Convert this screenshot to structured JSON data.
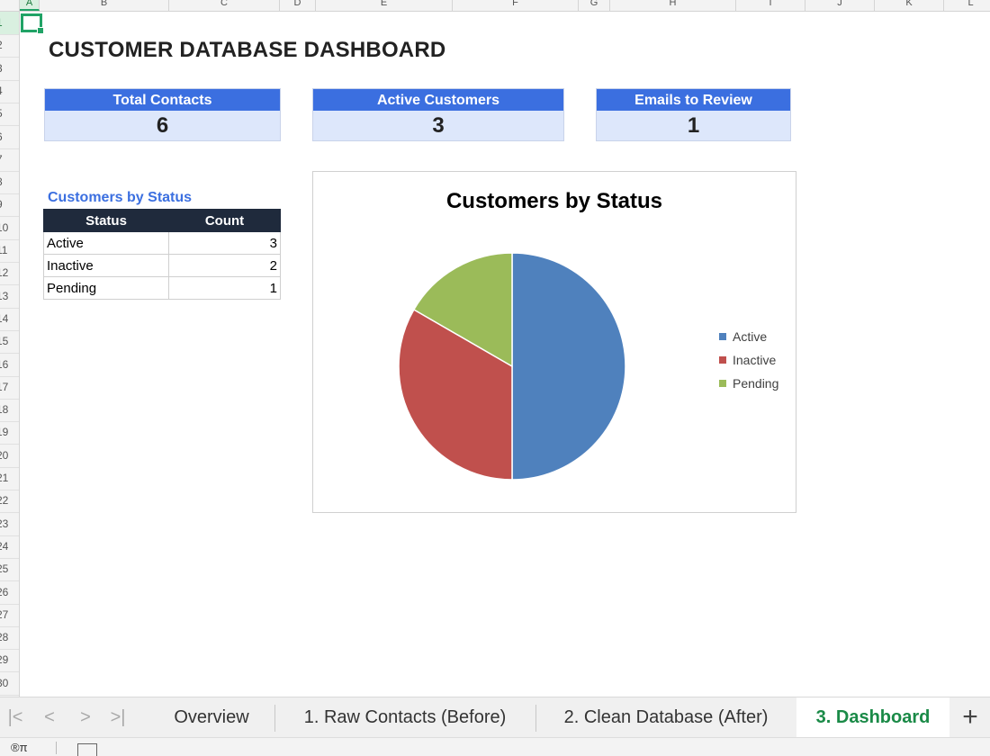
{
  "sheet": {
    "columns": [
      "A",
      "B",
      "C",
      "D",
      "E",
      "F",
      "G",
      "H",
      "I",
      "J",
      "K",
      "L"
    ],
    "rows": [
      "1",
      "2",
      "3",
      "4",
      "5",
      "6",
      "7",
      "8",
      "9",
      "10",
      "11",
      "12",
      "13",
      "14",
      "15",
      "16",
      "17",
      "18",
      "19",
      "20",
      "21",
      "22",
      "23",
      "24",
      "25",
      "26",
      "27",
      "28",
      "29",
      "30"
    ],
    "selected_cell": "A1"
  },
  "dashboard": {
    "title": "CUSTOMER DATABASE DASHBOARD",
    "kpis": [
      {
        "label": "Total Contacts",
        "value": "6"
      },
      {
        "label": "Active Customers",
        "value": "3"
      },
      {
        "label": "Emails to Review",
        "value": "1"
      }
    ],
    "status_table": {
      "title": "Customers by Status",
      "headers": [
        "Status",
        "Count"
      ],
      "rows": [
        {
          "status": "Active",
          "count": "3"
        },
        {
          "status": "Inactive",
          "count": "2"
        },
        {
          "status": "Pending",
          "count": "1"
        }
      ]
    }
  },
  "chart_data": {
    "type": "pie",
    "title": "Customers by Status",
    "categories": [
      "Active",
      "Inactive",
      "Pending"
    ],
    "values": [
      3,
      2,
      1
    ],
    "colors": [
      "#4f81bd",
      "#c0504d",
      "#9bbb59"
    ],
    "legend_position": "right"
  },
  "tabs": {
    "items": [
      "Overview",
      "1. Raw Contacts (Before)",
      "2. Clean Database (After)",
      "3. Dashboard"
    ],
    "active": "3. Dashboard",
    "add_label": "+"
  },
  "nav": {
    "first": "|<",
    "prev": "<",
    "next": ">",
    "last": ">|"
  },
  "status_bar": {
    "text": "®π"
  },
  "colors": {
    "accent_green": "#21a366",
    "kpi_header": "#3b6fe0",
    "kpi_body": "#dde7fb",
    "table_header": "#1f2a3c"
  }
}
